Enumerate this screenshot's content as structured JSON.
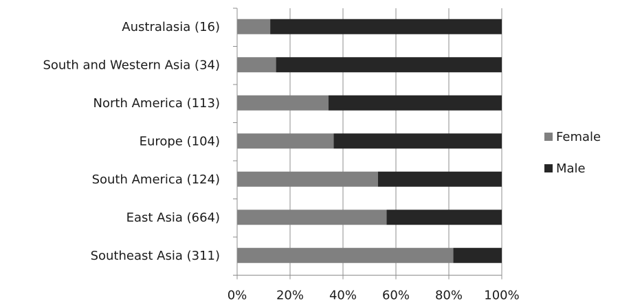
{
  "chart_data": {
    "type": "bar",
    "orientation": "horizontal",
    "stacked": "percent",
    "categories": [
      "Australasia (16)",
      "South and Western Asia (34)",
      "North America (113)",
      "Europe (104)",
      "South America (124)",
      "East Asia (664)",
      "Southeast Asia (311)"
    ],
    "series": [
      {
        "name": "Female",
        "color": "#808080",
        "values": [
          12.5,
          14.7,
          34.5,
          36.5,
          53.2,
          56.5,
          81.7
        ]
      },
      {
        "name": "Male",
        "color": "#262626",
        "values": [
          87.5,
          85.3,
          65.5,
          63.5,
          46.8,
          43.5,
          18.3
        ]
      }
    ],
    "xlim": [
      0,
      100
    ],
    "x_ticks": [
      "0%",
      "20%",
      "40%",
      "60%",
      "80%",
      "100%"
    ],
    "title": "",
    "xlabel": "",
    "ylabel": "",
    "grid": "vertical",
    "legend_position": "right"
  }
}
